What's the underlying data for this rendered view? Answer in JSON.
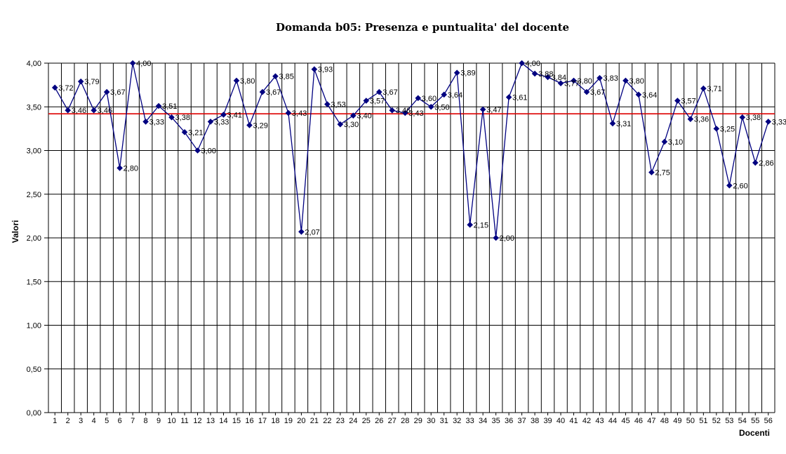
{
  "chart_data": {
    "type": "line",
    "title": "Domanda b05: Presenza e puntualita' del docente",
    "xlabel": "Docenti",
    "ylabel": "Valori",
    "x": [
      1,
      2,
      3,
      4,
      5,
      6,
      7,
      8,
      9,
      10,
      11,
      12,
      13,
      14,
      15,
      16,
      17,
      18,
      19,
      20,
      21,
      22,
      23,
      24,
      25,
      26,
      27,
      28,
      29,
      30,
      31,
      32,
      33,
      34,
      35,
      36,
      37,
      38,
      39,
      40,
      41,
      42,
      43,
      44,
      45,
      46,
      47,
      48,
      49,
      50,
      51,
      52,
      53,
      54,
      55,
      56
    ],
    "values": [
      3.72,
      3.46,
      3.79,
      3.46,
      3.67,
      2.8,
      4.0,
      3.33,
      3.51,
      3.38,
      3.21,
      3.0,
      3.33,
      3.41,
      3.8,
      3.29,
      3.67,
      3.85,
      3.43,
      2.07,
      3.93,
      3.53,
      3.3,
      3.4,
      3.57,
      3.67,
      3.46,
      3.43,
      3.6,
      3.5,
      3.64,
      3.89,
      2.15,
      3.47,
      2.0,
      3.61,
      4.0,
      3.88,
      3.84,
      3.77,
      3.8,
      3.67,
      3.83,
      3.31,
      3.8,
      3.64,
      2.75,
      3.1,
      3.57,
      3.36,
      3.71,
      3.25,
      2.6,
      3.38,
      2.86,
      3.33
    ],
    "point_labels": [
      "3,72",
      "3,46",
      "3,79",
      "3,46",
      "3,67",
      "2,80",
      "4,00",
      "3,33",
      "3,51",
      "3,38",
      "3,21",
      "3,00",
      "3,33",
      "3,41",
      "3,80",
      "3,29",
      "3,67",
      "3,85",
      "3,43",
      "2,07",
      "3,93",
      "3,53",
      "3,30",
      "3,40",
      "3,57",
      "3,67",
      "3,46",
      "3,43",
      "3,60",
      "3,50",
      "3,64",
      "3,89",
      "2,15",
      "3,47",
      "2,00",
      "3,61",
      "4,00",
      "3,88",
      "3,84",
      "3,77",
      "3,80",
      "3,67",
      "3,83",
      "3,31",
      "3,80",
      "3,64",
      "2,75",
      "3,10",
      "3,57",
      "3,36",
      "3,71",
      "3,25",
      "2,60",
      "3,38",
      "2,86",
      "3,33"
    ],
    "ylim": [
      0,
      4
    ],
    "ytick_step": 0.5,
    "ytick_labels": [
      "0,00",
      "0,50",
      "1,00",
      "1,50",
      "2,00",
      "2,50",
      "3,00",
      "3,50",
      "4,00"
    ],
    "grid": true,
    "legend_position": "none",
    "line_color": "#000080",
    "marker_color": "#000080",
    "marker_shape": "diamond",
    "label_color": "#000000",
    "grid_color": "#000000",
    "background_color": "#ffffff",
    "average_line": {
      "value": 3.42,
      "color": "#dd0000"
    }
  }
}
